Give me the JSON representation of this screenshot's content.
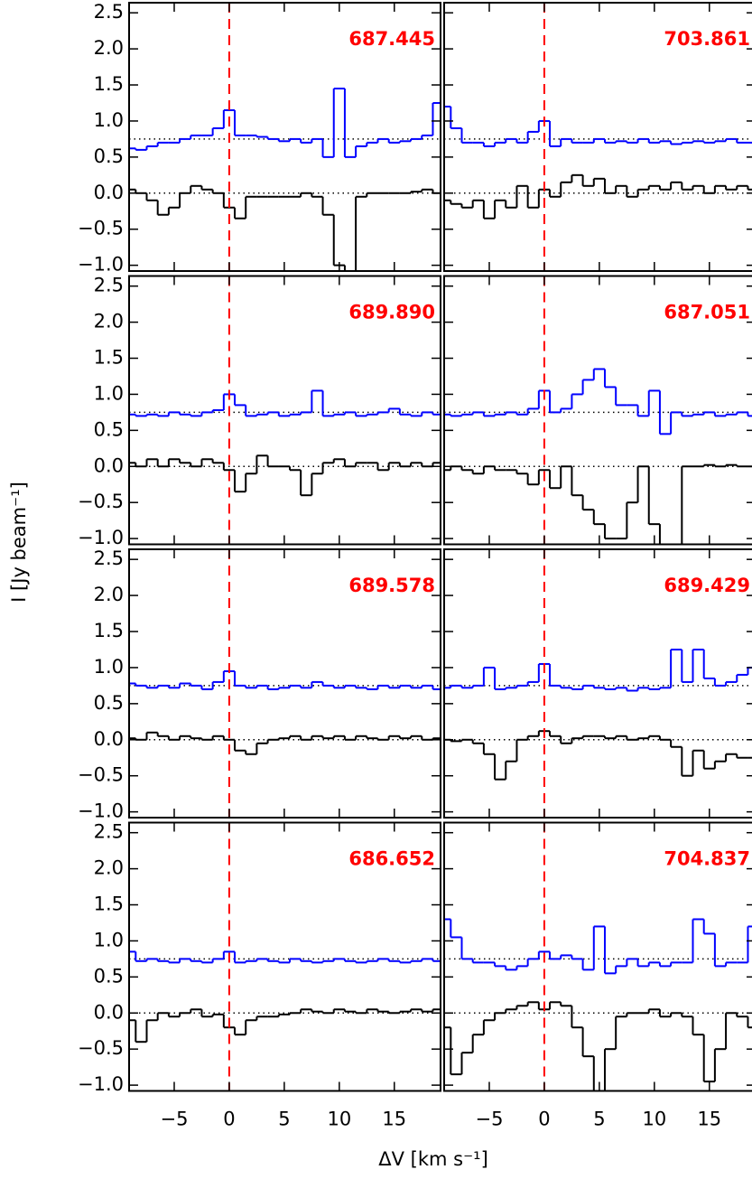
{
  "chart_data": {
    "type": "step",
    "xlabel": "ΔV [km s⁻¹]",
    "ylabel": "I [Jy beam⁻¹]",
    "x": [
      -9,
      -8,
      -7,
      -6,
      -5,
      -4,
      -3,
      -2,
      -1,
      0,
      1,
      2,
      3,
      4,
      5,
      6,
      7,
      8,
      9,
      10,
      11,
      12,
      13,
      14,
      15,
      16,
      17,
      18,
      19
    ],
    "xlim": [
      -9.1,
      19.2
    ],
    "xticks": [
      {
        "value": -5,
        "label": "−5"
      },
      0,
      5,
      10,
      15
    ],
    "ylim": [
      -1.08,
      2.64
    ],
    "yticks": [
      2.5,
      {
        "value": 2,
        "label": "2.0"
      },
      1.5,
      {
        "value": 1,
        "label": "1.0"
      },
      0.5,
      {
        "value": 0,
        "label": "0.0"
      },
      {
        "value": -0.5,
        "label": "−0.5"
      },
      {
        "value": -1,
        "label": "−1.0"
      }
    ],
    "baselines": [
      0,
      0.75
    ],
    "baseline_color": "#000000",
    "marker_x": 0,
    "marker_color": "#ff0000",
    "label_color": "#ff0000",
    "panels": [
      {
        "label": "687.445",
        "series": [
          {
            "color": "#0000ff",
            "values": [
              0.62,
              0.6,
              0.65,
              0.7,
              0.7,
              0.75,
              0.8,
              0.8,
              0.9,
              1.15,
              0.8,
              0.8,
              0.78,
              0.75,
              0.72,
              0.75,
              0.7,
              0.75,
              0.5,
              1.45,
              0.5,
              0.65,
              0.7,
              0.75,
              0.7,
              0.72,
              0.75,
              0.8,
              1.25
            ]
          },
          {
            "color": "#000000",
            "values": [
              0.05,
              0,
              -0.1,
              -0.3,
              -0.2,
              0,
              0.1,
              0.05,
              0,
              -0.2,
              -0.35,
              -0.05,
              -0.05,
              -0.05,
              -0.05,
              -0.05,
              0,
              -0.05,
              -0.3,
              -1,
              -1.2,
              -0.05,
              0,
              0,
              0,
              0,
              0.02,
              0.05,
              0
            ]
          }
        ]
      },
      {
        "label": "703.861",
        "series": [
          {
            "color": "#0000ff",
            "values": [
              1.2,
              0.9,
              0.7,
              0.7,
              0.65,
              0.7,
              0.75,
              0.7,
              0.85,
              1,
              0.65,
              0.75,
              0.7,
              0.7,
              0.75,
              0.7,
              0.72,
              0.7,
              0.75,
              0.7,
              0.72,
              0.68,
              0.7,
              0.72,
              0.7,
              0.72,
              0.75,
              0.7,
              0.7
            ]
          },
          {
            "color": "#000000",
            "values": [
              -0.1,
              -0.15,
              -0.2,
              -0.1,
              -0.35,
              -0.1,
              -0.2,
              0.1,
              -0.2,
              0.05,
              -0.05,
              0.15,
              0.25,
              0.1,
              0.2,
              0,
              0.1,
              -0.05,
              0.05,
              0.1,
              0.05,
              0.15,
              0.05,
              0.1,
              0,
              0.1,
              0.05,
              0.1,
              0.05
            ]
          }
        ]
      },
      {
        "label": "689.890",
        "series": [
          {
            "color": "#0000ff",
            "values": [
              0.72,
              0.7,
              0.72,
              0.7,
              0.75,
              0.72,
              0.7,
              0.75,
              0.78,
              1,
              0.85,
              0.7,
              0.72,
              0.75,
              0.7,
              0.72,
              0.75,
              1.05,
              0.7,
              0.72,
              0.75,
              0.7,
              0.72,
              0.75,
              0.8,
              0.72,
              0.7,
              0.75,
              0.72
            ]
          },
          {
            "color": "#000000",
            "values": [
              0.05,
              0,
              0.1,
              0,
              0.1,
              0.05,
              0,
              0.1,
              0.05,
              -0.05,
              -0.35,
              -0.1,
              0.15,
              0,
              0,
              -0.05,
              -0.4,
              -0.1,
              0.05,
              0.1,
              0,
              0.05,
              0.05,
              -0.05,
              0.05,
              0,
              0.05,
              0,
              0.05
            ]
          }
        ]
      },
      {
        "label": "687.051",
        "series": [
          {
            "color": "#0000ff",
            "values": [
              0.72,
              0.7,
              0.72,
              0.75,
              0.7,
              0.72,
              0.75,
              0.72,
              0.8,
              1.05,
              0.75,
              0.8,
              1,
              1.2,
              1.35,
              1.1,
              0.85,
              0.85,
              0.7,
              1.05,
              0.45,
              0.75,
              0.7,
              0.72,
              0.75,
              0.7,
              0.72,
              0.75,
              0.7
            ]
          },
          {
            "color": "#000000",
            "values": [
              -0.05,
              0,
              -0.05,
              -0.1,
              0,
              -0.05,
              -0.05,
              -0.1,
              -0.25,
              -0.05,
              -0.3,
              0,
              -0.4,
              -0.6,
              -0.8,
              -1,
              -1,
              -0.5,
              0,
              -0.8,
              -1.2,
              -1.2,
              0,
              0,
              0.02,
              0,
              0.02,
              0,
              0
            ]
          }
        ]
      },
      {
        "label": "689.578",
        "series": [
          {
            "color": "#0000ff",
            "values": [
              0.78,
              0.75,
              0.72,
              0.75,
              0.72,
              0.78,
              0.75,
              0.7,
              0.8,
              0.95,
              0.75,
              0.72,
              0.75,
              0.7,
              0.72,
              0.75,
              0.72,
              0.8,
              0.75,
              0.72,
              0.75,
              0.72,
              0.7,
              0.75,
              0.72,
              0.75,
              0.72,
              0.75,
              0.7
            ]
          },
          {
            "color": "#000000",
            "values": [
              0.02,
              0,
              0.1,
              0.05,
              0,
              0.05,
              0.02,
              0,
              0.05,
              0,
              -0.15,
              -0.2,
              -0.05,
              0,
              0.02,
              0.05,
              0,
              0.05,
              0.02,
              0.05,
              0,
              0.05,
              0.02,
              0,
              0.05,
              0.02,
              0.05,
              0,
              0.02
            ]
          }
        ]
      },
      {
        "label": "689.429",
        "series": [
          {
            "color": "#0000ff",
            "values": [
              0.72,
              0.75,
              0.72,
              0.75,
              1,
              0.7,
              0.72,
              0.75,
              0.8,
              1.05,
              0.75,
              0.72,
              0.7,
              0.75,
              0.72,
              0.7,
              0.72,
              0.68,
              0.72,
              0.7,
              0.72,
              1.25,
              0.8,
              1.25,
              0.85,
              0.75,
              0.8,
              0.9,
              1
            ]
          },
          {
            "color": "#000000",
            "values": [
              0,
              -0.02,
              0,
              -0.05,
              -0.2,
              -0.55,
              -0.3,
              0,
              0.05,
              0.12,
              0.05,
              -0.05,
              0.02,
              0.05,
              0.05,
              0.02,
              0.05,
              0,
              0.02,
              0.05,
              0,
              -0.1,
              -0.5,
              -0.15,
              -0.4,
              -0.3,
              -0.2,
              -0.25,
              -0.25
            ]
          }
        ]
      },
      {
        "label": "686.652",
        "series": [
          {
            "color": "#0000ff",
            "values": [
              0.85,
              0.72,
              0.75,
              0.72,
              0.7,
              0.75,
              0.72,
              0.7,
              0.75,
              0.85,
              0.7,
              0.72,
              0.75,
              0.72,
              0.7,
              0.75,
              0.72,
              0.7,
              0.72,
              0.75,
              0.72,
              0.7,
              0.72,
              0.75,
              0.72,
              0.7,
              0.72,
              0.75,
              0.72
            ]
          },
          {
            "color": "#000000",
            "values": [
              -0.1,
              -0.4,
              -0.1,
              0,
              -0.05,
              0,
              0.05,
              -0.05,
              -0.02,
              -0.2,
              -0.3,
              -0.1,
              -0.05,
              -0.05,
              -0.02,
              0,
              0.05,
              0.02,
              0,
              0.05,
              0.02,
              0,
              0.05,
              0.02,
              0,
              0.02,
              0.05,
              0.02,
              0.05
            ]
          }
        ]
      },
      {
        "label": "704.837",
        "series": [
          {
            "color": "#0000ff",
            "values": [
              1.3,
              1.05,
              0.75,
              0.7,
              0.7,
              0.65,
              0.6,
              0.65,
              0.75,
              0.85,
              0.75,
              0.8,
              0.75,
              0.6,
              1.2,
              0.55,
              0.65,
              0.75,
              0.65,
              0.7,
              0.65,
              0.7,
              0.7,
              1.3,
              1.1,
              0.65,
              0.7,
              0.7,
              1.2
            ]
          },
          {
            "color": "#000000",
            "values": [
              -0.2,
              -0.85,
              -0.55,
              -0.3,
              -0.1,
              0,
              0.05,
              0.1,
              0.15,
              0.05,
              0.15,
              0.1,
              -0.2,
              -0.6,
              -1.2,
              -0.5,
              -0.05,
              0,
              0,
              0.05,
              -0.05,
              0,
              -0.05,
              -0.3,
              -0.95,
              -0.5,
              0,
              -0.05,
              -0.2
            ]
          }
        ]
      }
    ]
  }
}
